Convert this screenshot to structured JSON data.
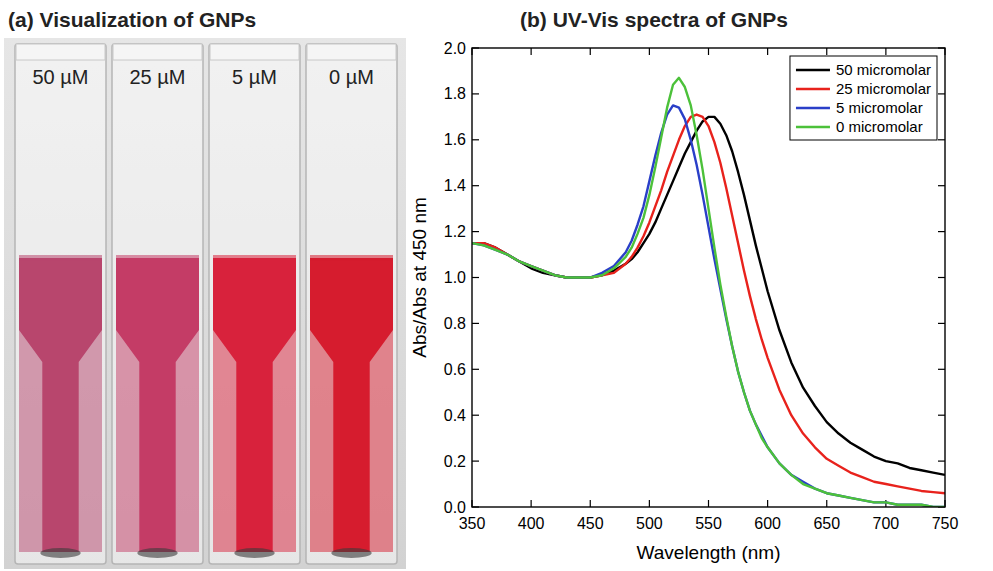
{
  "photo": {
    "title": "(a) Visualization of GNPs",
    "samples": [
      {
        "label": "50 µM",
        "color": "#b8466d"
      },
      {
        "label": "25 µM",
        "color": "#c43c66"
      },
      {
        "label": "5 µM",
        "color": "#d8223c"
      },
      {
        "label": "0 µM",
        "color": "#d61c2e"
      }
    ]
  },
  "chart_data": {
    "type": "line",
    "title": "(b) UV-Vis spectra of GNPs",
    "x_label": "Wavelength (nm)",
    "y_label": "Abs/Abs at 450 nm",
    "x": [
      350,
      360,
      370,
      380,
      390,
      400,
      410,
      420,
      430,
      440,
      450,
      460,
      470,
      480,
      485,
      490,
      495,
      500,
      505,
      510,
      515,
      520,
      525,
      530,
      535,
      540,
      545,
      550,
      555,
      560,
      565,
      570,
      575,
      580,
      585,
      590,
      595,
      600,
      610,
      620,
      630,
      640,
      650,
      660,
      670,
      680,
      690,
      700,
      710,
      720,
      730,
      740,
      750
    ],
    "series": [
      {
        "name": "50 micromolar",
        "color": "#000000",
        "values": [
          1.15,
          1.15,
          1.13,
          1.1,
          1.07,
          1.04,
          1.02,
          1.01,
          1.0,
          1.0,
          1.0,
          1.01,
          1.03,
          1.06,
          1.08,
          1.11,
          1.15,
          1.19,
          1.24,
          1.3,
          1.36,
          1.42,
          1.48,
          1.54,
          1.59,
          1.64,
          1.68,
          1.7,
          1.7,
          1.67,
          1.62,
          1.55,
          1.46,
          1.36,
          1.25,
          1.14,
          1.04,
          0.94,
          0.77,
          0.63,
          0.52,
          0.44,
          0.37,
          0.32,
          0.28,
          0.25,
          0.22,
          0.2,
          0.19,
          0.17,
          0.16,
          0.15,
          0.14
        ]
      },
      {
        "name": "25 micromolar",
        "color": "#e8221c",
        "values": [
          1.15,
          1.15,
          1.13,
          1.1,
          1.07,
          1.05,
          1.03,
          1.01,
          1.0,
          1.0,
          1.0,
          1.01,
          1.02,
          1.06,
          1.09,
          1.13,
          1.18,
          1.24,
          1.31,
          1.38,
          1.46,
          1.53,
          1.6,
          1.66,
          1.7,
          1.71,
          1.7,
          1.66,
          1.59,
          1.5,
          1.39,
          1.27,
          1.15,
          1.03,
          0.92,
          0.82,
          0.73,
          0.65,
          0.51,
          0.4,
          0.32,
          0.26,
          0.21,
          0.18,
          0.15,
          0.13,
          0.11,
          0.1,
          0.09,
          0.08,
          0.07,
          0.065,
          0.06
        ]
      },
      {
        "name": "5 micromolar",
        "color": "#2a3fc8",
        "values": [
          1.15,
          1.14,
          1.12,
          1.1,
          1.07,
          1.05,
          1.03,
          1.01,
          1.0,
          1.0,
          1.0,
          1.02,
          1.05,
          1.11,
          1.16,
          1.23,
          1.31,
          1.42,
          1.53,
          1.63,
          1.71,
          1.75,
          1.74,
          1.69,
          1.6,
          1.49,
          1.36,
          1.22,
          1.08,
          0.95,
          0.82,
          0.7,
          0.59,
          0.5,
          0.42,
          0.36,
          0.31,
          0.26,
          0.19,
          0.14,
          0.11,
          0.08,
          0.06,
          0.05,
          0.04,
          0.03,
          0.02,
          0.02,
          0.01,
          0.01,
          0.01,
          0.0,
          0.0
        ]
      },
      {
        "name": "0 micromolar",
        "color": "#4cc13a",
        "values": [
          1.15,
          1.14,
          1.12,
          1.1,
          1.07,
          1.05,
          1.03,
          1.01,
          1.0,
          1.0,
          1.0,
          1.01,
          1.04,
          1.09,
          1.13,
          1.19,
          1.26,
          1.36,
          1.48,
          1.61,
          1.74,
          1.84,
          1.87,
          1.83,
          1.75,
          1.62,
          1.47,
          1.3,
          1.13,
          0.97,
          0.83,
          0.7,
          0.59,
          0.5,
          0.42,
          0.36,
          0.3,
          0.26,
          0.19,
          0.14,
          0.1,
          0.08,
          0.06,
          0.05,
          0.04,
          0.03,
          0.02,
          0.02,
          0.01,
          0.01,
          0.01,
          0.0,
          0.0
        ]
      }
    ],
    "xlim": [
      350,
      750
    ],
    "xticks": [
      350,
      400,
      450,
      500,
      550,
      600,
      650,
      700,
      750
    ],
    "ylim": [
      0,
      2
    ],
    "yticks": [
      {
        "value": 0,
        "label": "0.0"
      },
      0.2,
      0.4,
      0.6,
      0.8,
      {
        "value": 1,
        "label": "1.0"
      },
      1.2,
      1.4,
      1.6,
      1.8,
      {
        "value": 2,
        "label": "2.0"
      }
    ],
    "grid": false,
    "legend": "top-right"
  }
}
